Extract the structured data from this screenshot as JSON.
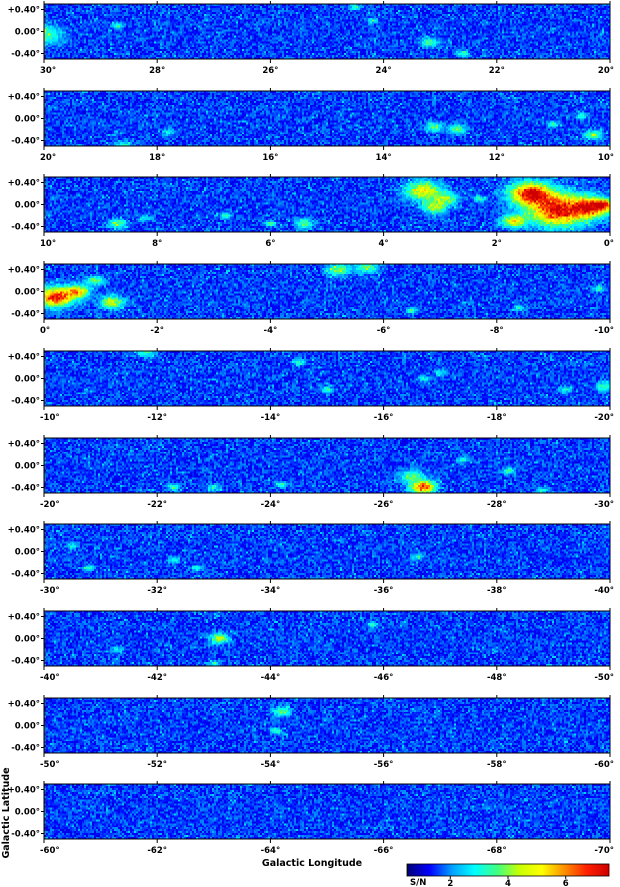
{
  "chart_data": {
    "type": "heatmap",
    "xlabel": "Galactic Longitude",
    "ylabel": "Galactic Latitude",
    "lat_range": [
      -0.5,
      0.5
    ],
    "lat_ticks": [
      "+0.40°",
      "0.00°",
      "-0.40°"
    ],
    "colorbar": {
      "label": "S/N",
      "ticks": [
        "2",
        "4",
        "6"
      ],
      "tick_values": [
        2,
        4,
        6
      ],
      "range": [
        0.5,
        7.5
      ],
      "stops": [
        "#00007a",
        "#0000ff",
        "#00a0ff",
        "#00ffff",
        "#40ff80",
        "#c8ff00",
        "#ffff00",
        "#ff9000",
        "#ff2000",
        "#cc0000"
      ]
    },
    "panels": [
      {
        "xlim": [
          30,
          20
        ],
        "ticks": [
          "30°",
          "28°",
          "26°",
          "24°",
          "22°",
          "20°"
        ],
        "tick_values": [
          30,
          28,
          26,
          24,
          22,
          20
        ],
        "sources": [
          [
            30.0,
            -0.05,
            0.3,
            3.5
          ],
          [
            28.7,
            0.1,
            0.1,
            3.0
          ],
          [
            24.5,
            0.45,
            0.1,
            3.0
          ],
          [
            24.2,
            0.2,
            0.1,
            2.8
          ],
          [
            23.2,
            -0.2,
            0.15,
            3.2
          ],
          [
            22.6,
            -0.4,
            0.1,
            3.2
          ]
        ]
      },
      {
        "xlim": [
          20,
          10
        ],
        "ticks": [
          "20°",
          "18°",
          "16°",
          "14°",
          "12°",
          "10°"
        ],
        "tick_values": [
          20,
          18,
          16,
          14,
          12,
          10
        ],
        "sources": [
          [
            18.6,
            -0.5,
            0.15,
            3.0
          ],
          [
            17.8,
            -0.25,
            0.1,
            2.8
          ],
          [
            13.1,
            -0.15,
            0.15,
            3.4
          ],
          [
            12.7,
            -0.2,
            0.15,
            3.6
          ],
          [
            11.0,
            -0.1,
            0.1,
            3.0
          ],
          [
            10.3,
            -0.3,
            0.15,
            3.8
          ],
          [
            10.5,
            0.05,
            0.1,
            3.0
          ]
        ]
      },
      {
        "xlim": [
          10,
          0
        ],
        "ticks": [
          "10°",
          "8°",
          "6°",
          "4°",
          "2°",
          "0°"
        ],
        "tick_values": [
          10,
          8,
          6,
          4,
          2,
          0
        ],
        "sources": [
          [
            8.7,
            -0.35,
            0.15,
            3.8
          ],
          [
            8.2,
            -0.25,
            0.1,
            3.0
          ],
          [
            6.8,
            -0.2,
            0.1,
            3.0
          ],
          [
            6.0,
            -0.35,
            0.1,
            3.2
          ],
          [
            5.4,
            -0.35,
            0.15,
            3.6
          ],
          [
            3.3,
            0.25,
            0.3,
            5.0
          ],
          [
            3.1,
            -0.05,
            0.2,
            4.2
          ],
          [
            2.9,
            0.1,
            0.2,
            3.8
          ],
          [
            2.3,
            0.1,
            0.1,
            3.0
          ],
          [
            1.4,
            0.2,
            0.35,
            7.0
          ],
          [
            0.9,
            -0.1,
            0.5,
            7.2
          ],
          [
            0.3,
            -0.05,
            0.3,
            6.0
          ],
          [
            1.7,
            -0.3,
            0.2,
            5.0
          ],
          [
            0.1,
            0.0,
            0.15,
            4.5
          ]
        ]
      },
      {
        "xlim": [
          0,
          -10
        ],
        "ticks": [
          "0°",
          "-2°",
          "-4°",
          "-6°",
          "-8°",
          "-10°"
        ],
        "tick_values": [
          0,
          -2,
          -4,
          -6,
          -8,
          -10
        ],
        "sources": [
          [
            -0.2,
            -0.1,
            0.3,
            7.0
          ],
          [
            -0.6,
            0.0,
            0.2,
            5.0
          ],
          [
            -1.2,
            -0.2,
            0.2,
            4.5
          ],
          [
            -0.9,
            0.2,
            0.15,
            3.8
          ],
          [
            -5.2,
            0.4,
            0.2,
            3.8
          ],
          [
            -5.7,
            0.45,
            0.2,
            3.5
          ],
          [
            -6.5,
            -0.35,
            0.1,
            3.2
          ],
          [
            -8.4,
            -0.3,
            0.1,
            3.0
          ],
          [
            -9.8,
            0.05,
            0.1,
            3.0
          ]
        ]
      },
      {
        "xlim": [
          -10,
          -20
        ],
        "ticks": [
          "-10°",
          "-12°",
          "-14°",
          "-16°",
          "-18°",
          "-20°"
        ],
        "tick_values": [
          -10,
          -12,
          -14,
          -16,
          -18,
          -20
        ],
        "sources": [
          [
            -11.8,
            0.48,
            0.15,
            3.2
          ],
          [
            -14.5,
            0.3,
            0.1,
            3.2
          ],
          [
            -15.0,
            -0.2,
            0.1,
            3.2
          ],
          [
            -16.7,
            0.0,
            0.1,
            2.8
          ],
          [
            -17.0,
            0.1,
            0.1,
            2.8
          ],
          [
            -19.2,
            -0.2,
            0.1,
            3.0
          ],
          [
            -19.9,
            -0.15,
            0.15,
            3.4
          ]
        ]
      },
      {
        "xlim": [
          -20,
          -30
        ],
        "ticks": [
          "-20°",
          "-22°",
          "-24°",
          "-26°",
          "-28°",
          "-30°"
        ],
        "tick_values": [
          -20,
          -22,
          -24,
          -26,
          -28,
          -30
        ],
        "sources": [
          [
            -22.3,
            -0.4,
            0.1,
            3.2
          ],
          [
            -23.0,
            -0.4,
            0.1,
            3.0
          ],
          [
            -24.2,
            -0.35,
            0.1,
            3.0
          ],
          [
            -26.5,
            -0.2,
            0.2,
            3.6
          ],
          [
            -26.7,
            -0.4,
            0.2,
            6.5
          ],
          [
            -27.4,
            0.1,
            0.1,
            3.0
          ],
          [
            -28.2,
            -0.1,
            0.1,
            3.4
          ],
          [
            -28.8,
            -0.45,
            0.1,
            3.0
          ]
        ]
      },
      {
        "xlim": [
          -30,
          -40
        ],
        "ticks": [
          "-30°",
          "-32°",
          "-34°",
          "-36°",
          "-38°",
          "-40°"
        ],
        "tick_values": [
          -30,
          -32,
          -34,
          -36,
          -38,
          -40
        ],
        "sources": [
          [
            -30.5,
            0.1,
            0.1,
            2.8
          ],
          [
            -30.8,
            -0.3,
            0.1,
            3.0
          ],
          [
            -32.3,
            -0.15,
            0.1,
            3.0
          ],
          [
            -32.7,
            -0.3,
            0.1,
            3.0
          ],
          [
            -36.6,
            -0.1,
            0.1,
            2.8
          ]
        ]
      },
      {
        "xlim": [
          -40,
          -50
        ],
        "ticks": [
          "-40°",
          "-42°",
          "-44°",
          "-46°",
          "-48°",
          "-50°"
        ],
        "tick_values": [
          -40,
          -42,
          -44,
          -46,
          -48,
          -50
        ],
        "sources": [
          [
            -43.1,
            0.0,
            0.15,
            4.5
          ],
          [
            -45.8,
            0.25,
            0.1,
            3.0
          ],
          [
            -41.3,
            -0.2,
            0.1,
            2.8
          ],
          [
            -43.0,
            -0.45,
            0.1,
            2.8
          ]
        ]
      },
      {
        "xlim": [
          -50,
          -60
        ],
        "ticks": [
          "-50°",
          "-52°",
          "-54°",
          "-56°",
          "-58°",
          "-60°"
        ],
        "tick_values": [
          -50,
          -52,
          -54,
          -56,
          -58,
          -60
        ],
        "sources": [
          [
            -54.2,
            0.25,
            0.15,
            3.6
          ],
          [
            -54.1,
            -0.1,
            0.1,
            3.2
          ]
        ]
      },
      {
        "xlim": [
          -60,
          -70
        ],
        "ticks": [
          "-60°",
          "-62°",
          "-64°",
          "-66°",
          "-68°",
          "-70°"
        ],
        "tick_values": [
          -60,
          -62,
          -64,
          -66,
          -68,
          -70
        ],
        "sources": []
      }
    ]
  }
}
